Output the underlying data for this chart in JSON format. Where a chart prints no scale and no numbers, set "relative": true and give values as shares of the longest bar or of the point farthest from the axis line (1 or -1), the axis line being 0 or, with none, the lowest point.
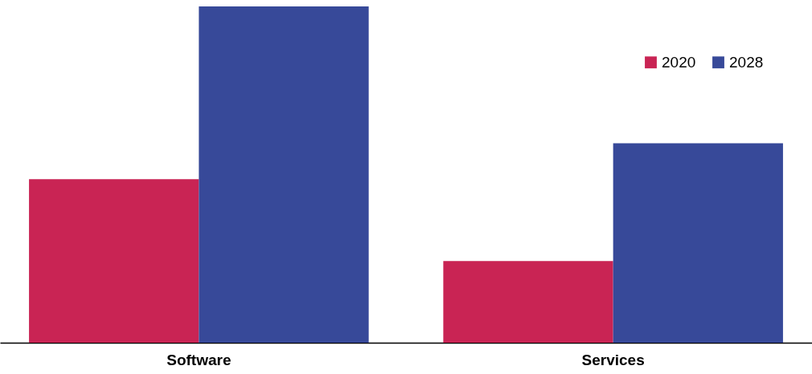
{
  "chart_data": {
    "type": "bar",
    "relative": true,
    "categories": [
      "Software",
      "Services"
    ],
    "series": [
      {
        "name": "2020",
        "color": "#c92454",
        "values": [
          0.486,
          0.243
        ]
      },
      {
        "name": "2028",
        "color": "#374999",
        "values": [
          1,
          0.593
        ]
      }
    ],
    "legend": "top right"
  }
}
